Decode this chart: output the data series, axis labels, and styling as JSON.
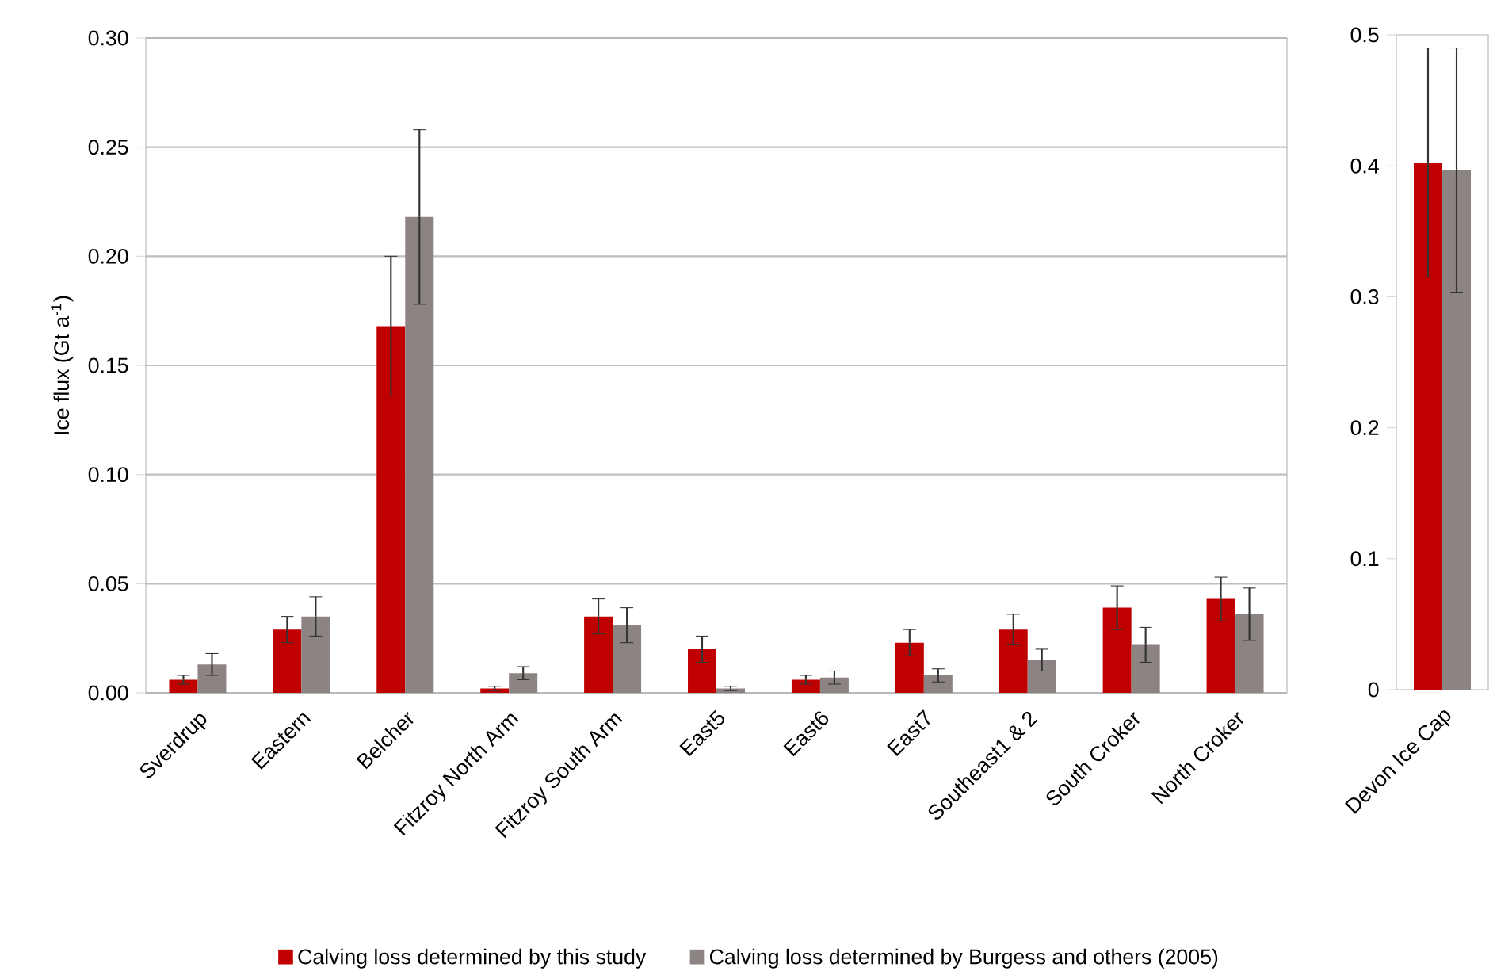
{
  "chart_data": [
    {
      "type": "bar",
      "ylabel": "Ice flux (Gt a$^{-1}$)",
      "categories": [
        "Sverdrup",
        "Eastern",
        "Belcher",
        "Fitzroy North Arm",
        "Fitzroy South Arm",
        "East5",
        "East6",
        "East7",
        "Southeast1 & 2",
        "South Croker",
        "North Croker"
      ],
      "series": [
        {
          "name": "Calving loss determined by this study",
          "color": "#c00000",
          "values": [
            0.006,
            0.029,
            0.168,
            0.002,
            0.035,
            0.02,
            0.006,
            0.023,
            0.029,
            0.039,
            0.043
          ],
          "errors": [
            0.002,
            0.006,
            [
              0.136,
              0.2
            ],
            0.001,
            0.008,
            0.006,
            0.002,
            0.006,
            0.007,
            0.01,
            0.01
          ]
        },
        {
          "name": "Calving loss determined by Burgess and others (2005)",
          "color": "#8c8482",
          "values": [
            0.013,
            0.035,
            0.218,
            0.009,
            0.031,
            0.002,
            0.007,
            0.008,
            0.015,
            0.022,
            0.036
          ],
          "errors": [
            0.005,
            0.009,
            [
              0.178,
              0.258
            ],
            0.003,
            0.008,
            0.001,
            0.003,
            0.003,
            0.005,
            0.008,
            0.012
          ]
        }
      ],
      "ylim": [
        0,
        0.3
      ],
      "yticks": [
        {
          "value": 0,
          "label": "0.00"
        },
        {
          "value": 0.05,
          "label": "0.05"
        },
        {
          "value": 0.1,
          "label": "0.10"
        },
        {
          "value": 0.15,
          "label": "0.15"
        },
        {
          "value": 0.2,
          "label": "0.20"
        },
        {
          "value": 0.25,
          "label": "0.25"
        },
        {
          "value": 0.3,
          "label": "0.30"
        }
      ],
      "grid": "y",
      "legend": "bottom"
    },
    {
      "type": "bar",
      "categories": [
        "Devon Ice Cap"
      ],
      "series": [
        {
          "color": "#c00000",
          "values": [
            0.402
          ],
          "errors": [
            [
              0.315,
              0.49
            ]
          ]
        },
        {
          "color": "#8c8482",
          "values": [
            0.397
          ],
          "errors": [
            [
              0.303,
              0.49
            ]
          ]
        }
      ],
      "ylim": [
        0,
        0.5
      ],
      "yticks": [
        0,
        0.1,
        0.2,
        0.3,
        0.4,
        0.5
      ]
    }
  ]
}
